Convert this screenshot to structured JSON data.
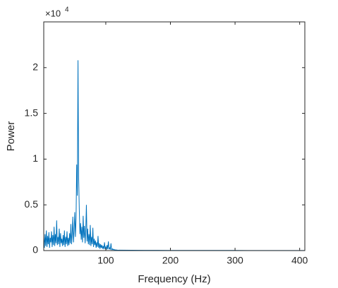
{
  "chart_data": {
    "type": "line",
    "xlabel": "Frequency (Hz)",
    "ylabel": "Power",
    "y_exponent_base": "×10",
    "y_exponent": "4",
    "color": "#0072bd",
    "xlim": [
      4,
      408
    ],
    "xticks": [
      100,
      200,
      300,
      400
    ],
    "ylim": [
      0,
      25000
    ],
    "yticks": [
      0,
      {
        "value": 5000,
        "label": "0.5"
      },
      {
        "value": 10000,
        "label": "1"
      },
      {
        "value": 15000,
        "label": "1.5"
      },
      {
        "value": 20000,
        "label": "2"
      }
    ],
    "x": [
      4,
      5,
      6,
      7,
      8,
      9,
      10,
      11,
      12,
      13,
      14,
      15,
      16,
      17,
      18,
      19,
      20,
      21,
      22,
      23,
      24,
      25,
      26,
      27,
      28,
      29,
      30,
      31,
      32,
      33,
      34,
      35,
      36,
      37,
      38,
      39,
      40,
      41,
      42,
      43,
      44,
      45,
      46,
      47,
      48,
      49,
      50,
      51,
      52,
      53,
      54,
      55,
      56,
      57,
      58,
      59,
      60,
      61,
      62,
      63,
      64,
      65,
      66,
      67,
      68,
      69,
      70,
      71,
      72,
      73,
      74,
      75,
      76,
      77,
      78,
      79,
      80,
      81,
      82,
      83,
      84,
      85,
      86,
      87,
      88,
      89,
      90,
      91,
      92,
      93,
      94,
      95,
      96,
      97,
      98,
      99,
      100,
      101,
      102,
      103,
      104,
      105,
      106,
      107,
      108,
      109,
      110,
      111,
      112,
      113,
      114,
      115,
      116,
      117,
      118,
      119,
      120,
      140,
      160,
      180,
      200,
      220,
      240,
      260,
      280,
      300,
      320,
      340,
      360,
      380,
      400,
      408
    ],
    "values": [
      1500,
      300,
      1800,
      500,
      2200,
      400,
      1600,
      700,
      2000,
      300,
      1400,
      900,
      2100,
      400,
      1700,
      600,
      2600,
      500,
      1800,
      800,
      3300,
      600,
      1500,
      700,
      2400,
      400,
      1900,
      800,
      1300,
      500,
      1700,
      600,
      2200,
      400,
      1500,
      700,
      2100,
      500,
      1400,
      600,
      1900,
      800,
      2900,
      700,
      1800,
      3700,
      900,
      2200,
      4200,
      1500,
      3500,
      9400,
      6000,
      20800,
      8000,
      4500,
      1800,
      3000,
      1200,
      2600,
      900,
      3800,
      1400,
      2700,
      800,
      2200,
      5000,
      1000,
      2400,
      700,
      1800,
      600,
      2800,
      500,
      1500,
      700,
      2500,
      400,
      1300,
      600,
      1100,
      300,
      900,
      400,
      1600,
      300,
      800,
      200,
      700,
      300,
      600,
      200,
      500,
      150,
      900,
      200,
      400,
      100,
      600,
      150,
      1000,
      200,
      300,
      100,
      800,
      100,
      200,
      80,
      150,
      60,
      100,
      50,
      80,
      40,
      60,
      30,
      50,
      40,
      30,
      30,
      20,
      20,
      20,
      15,
      15,
      15,
      10,
      10,
      10,
      10,
      10,
      10
    ]
  }
}
